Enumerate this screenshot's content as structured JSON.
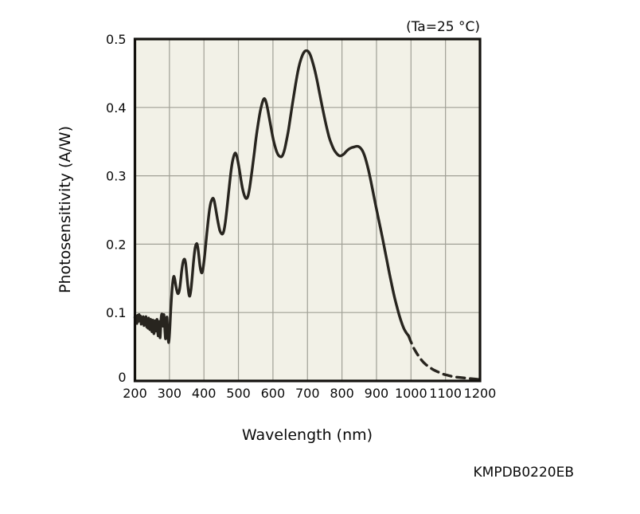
{
  "chart_data": {
    "type": "line",
    "title": "",
    "condition": "(Ta=25 °C)",
    "xlabel": "Wavelength (nm)",
    "ylabel": "Photosensitivity (A/W)",
    "footer_code": "KMPDB0220EB",
    "xlim": [
      200,
      1200
    ],
    "ylim": [
      0,
      0.5
    ],
    "x_ticks": [
      200,
      300,
      400,
      500,
      600,
      700,
      800,
      900,
      1000,
      1100,
      1200
    ],
    "y_ticks": [
      {
        "value": 0.0,
        "label": "0"
      },
      {
        "value": 0.1,
        "label": "0.1"
      },
      {
        "value": 0.2,
        "label": "0.2"
      },
      {
        "value": 0.3,
        "label": "0.3"
      },
      {
        "value": 0.4,
        "label": "0.4"
      },
      {
        "value": 0.5,
        "label": "0.5"
      }
    ],
    "grid": true,
    "legend_position": "none",
    "colors": {
      "plot_background": "#f2f1e7",
      "gridline": "#a0a096",
      "frame": "#13110e",
      "curve": "#28251f",
      "text": "#0a0a0a",
      "page_background": "#ffffff"
    },
    "series": [
      {
        "name": "photosensitivity-measured",
        "line_style": "solid",
        "points": [
          [
            200,
            0.093
          ],
          [
            202,
            0.086
          ],
          [
            204,
            0.095
          ],
          [
            206,
            0.084
          ],
          [
            208,
            0.096
          ],
          [
            210,
            0.087
          ],
          [
            212,
            0.097
          ],
          [
            214,
            0.088
          ],
          [
            216,
            0.095
          ],
          [
            218,
            0.083
          ],
          [
            220,
            0.093
          ],
          [
            222,
            0.085
          ],
          [
            224,
            0.094
          ],
          [
            226,
            0.081
          ],
          [
            228,
            0.092
          ],
          [
            230,
            0.084
          ],
          [
            232,
            0.094
          ],
          [
            234,
            0.079
          ],
          [
            236,
            0.091
          ],
          [
            238,
            0.077
          ],
          [
            240,
            0.092
          ],
          [
            243,
            0.075
          ],
          [
            246,
            0.09
          ],
          [
            249,
            0.072
          ],
          [
            252,
            0.089
          ],
          [
            255,
            0.069
          ],
          [
            258,
            0.088
          ],
          [
            261,
            0.073
          ],
          [
            264,
            0.09
          ],
          [
            267,
            0.066
          ],
          [
            270,
            0.087
          ],
          [
            273,
            0.063
          ],
          [
            276,
            0.092
          ],
          [
            279,
            0.097
          ],
          [
            281,
            0.08
          ],
          [
            284,
            0.097
          ],
          [
            287,
            0.072
          ],
          [
            289,
            0.062
          ],
          [
            291,
            0.085
          ],
          [
            293,
            0.093
          ],
          [
            295,
            0.072
          ],
          [
            298,
            0.056
          ],
          [
            301,
            0.075
          ],
          [
            304,
            0.105
          ],
          [
            308,
            0.136
          ],
          [
            312,
            0.152
          ],
          [
            315,
            0.15
          ],
          [
            318,
            0.141
          ],
          [
            321,
            0.133
          ],
          [
            324,
            0.128
          ],
          [
            327,
            0.129
          ],
          [
            330,
            0.136
          ],
          [
            333,
            0.149
          ],
          [
            336,
            0.163
          ],
          [
            340,
            0.175
          ],
          [
            344,
            0.178
          ],
          [
            347,
            0.172
          ],
          [
            350,
            0.157
          ],
          [
            353,
            0.141
          ],
          [
            356,
            0.128
          ],
          [
            358,
            0.124
          ],
          [
            360,
            0.126
          ],
          [
            363,
            0.136
          ],
          [
            366,
            0.152
          ],
          [
            369,
            0.17
          ],
          [
            372,
            0.185
          ],
          [
            375,
            0.196
          ],
          [
            379,
            0.201
          ],
          [
            382,
            0.196
          ],
          [
            385,
            0.184
          ],
          [
            388,
            0.17
          ],
          [
            391,
            0.161
          ],
          [
            394,
            0.158
          ],
          [
            397,
            0.163
          ],
          [
            400,
            0.174
          ],
          [
            404,
            0.193
          ],
          [
            408,
            0.214
          ],
          [
            412,
            0.233
          ],
          [
            416,
            0.25
          ],
          [
            420,
            0.261
          ],
          [
            424,
            0.266
          ],
          [
            427,
            0.267
          ],
          [
            430,
            0.263
          ],
          [
            434,
            0.252
          ],
          [
            438,
            0.24
          ],
          [
            442,
            0.229
          ],
          [
            446,
            0.22
          ],
          [
            450,
            0.216
          ],
          [
            454,
            0.215
          ],
          [
            458,
            0.22
          ],
          [
            462,
            0.232
          ],
          [
            466,
            0.249
          ],
          [
            470,
            0.268
          ],
          [
            474,
            0.287
          ],
          [
            478,
            0.305
          ],
          [
            482,
            0.319
          ],
          [
            486,
            0.328
          ],
          [
            490,
            0.333
          ],
          [
            493,
            0.332
          ],
          [
            496,
            0.327
          ],
          [
            500,
            0.317
          ],
          [
            504,
            0.305
          ],
          [
            508,
            0.292
          ],
          [
            512,
            0.281
          ],
          [
            516,
            0.273
          ],
          [
            520,
            0.268
          ],
          [
            524,
            0.267
          ],
          [
            528,
            0.271
          ],
          [
            532,
            0.281
          ],
          [
            536,
            0.295
          ],
          [
            541,
            0.314
          ],
          [
            546,
            0.334
          ],
          [
            551,
            0.355
          ],
          [
            557,
            0.376
          ],
          [
            563,
            0.394
          ],
          [
            568,
            0.405
          ],
          [
            572,
            0.411
          ],
          [
            575,
            0.413
          ],
          [
            578,
            0.411
          ],
          [
            582,
            0.404
          ],
          [
            586,
            0.394
          ],
          [
            591,
            0.38
          ],
          [
            596,
            0.366
          ],
          [
            601,
            0.353
          ],
          [
            606,
            0.343
          ],
          [
            611,
            0.335
          ],
          [
            616,
            0.33
          ],
          [
            621,
            0.328
          ],
          [
            625,
            0.328
          ],
          [
            629,
            0.331
          ],
          [
            634,
            0.339
          ],
          [
            639,
            0.351
          ],
          [
            645,
            0.367
          ],
          [
            651,
            0.387
          ],
          [
            658,
            0.41
          ],
          [
            665,
            0.432
          ],
          [
            672,
            0.452
          ],
          [
            679,
            0.467
          ],
          [
            686,
            0.477
          ],
          [
            692,
            0.482
          ],
          [
            697,
            0.483
          ],
          [
            702,
            0.482
          ],
          [
            708,
            0.477
          ],
          [
            714,
            0.468
          ],
          [
            721,
            0.455
          ],
          [
            728,
            0.439
          ],
          [
            735,
            0.421
          ],
          [
            742,
            0.403
          ],
          [
            749,
            0.386
          ],
          [
            756,
            0.37
          ],
          [
            763,
            0.356
          ],
          [
            770,
            0.346
          ],
          [
            777,
            0.338
          ],
          [
            784,
            0.333
          ],
          [
            790,
            0.33
          ],
          [
            795,
            0.329
          ],
          [
            800,
            0.33
          ],
          [
            806,
            0.332
          ],
          [
            813,
            0.336
          ],
          [
            820,
            0.339
          ],
          [
            827,
            0.341
          ],
          [
            834,
            0.342
          ],
          [
            841,
            0.343
          ],
          [
            847,
            0.343
          ],
          [
            853,
            0.341
          ],
          [
            859,
            0.337
          ],
          [
            865,
            0.33
          ],
          [
            871,
            0.32
          ],
          [
            877,
            0.308
          ],
          [
            883,
            0.294
          ],
          [
            889,
            0.279
          ],
          [
            896,
            0.261
          ],
          [
            903,
            0.244
          ],
          [
            910,
            0.227
          ],
          [
            917,
            0.21
          ],
          [
            924,
            0.192
          ],
          [
            931,
            0.174
          ],
          [
            938,
            0.156
          ],
          [
            945,
            0.139
          ],
          [
            952,
            0.123
          ],
          [
            959,
            0.109
          ],
          [
            966,
            0.096
          ],
          [
            973,
            0.085
          ],
          [
            980,
            0.076
          ],
          [
            987,
            0.07
          ],
          [
            993,
            0.066
          ]
        ]
      },
      {
        "name": "photosensitivity-extrapolated",
        "line_style": "dashed",
        "points": [
          [
            993,
            0.066
          ],
          [
            1000,
            0.057
          ],
          [
            1008,
            0.048
          ],
          [
            1016,
            0.041
          ],
          [
            1024,
            0.035
          ],
          [
            1033,
            0.029
          ],
          [
            1043,
            0.024
          ],
          [
            1054,
            0.02
          ],
          [
            1066,
            0.016
          ],
          [
            1079,
            0.013
          ],
          [
            1093,
            0.01
          ],
          [
            1108,
            0.008
          ],
          [
            1124,
            0.006
          ],
          [
            1142,
            0.005
          ],
          [
            1161,
            0.004
          ],
          [
            1181,
            0.003
          ],
          [
            1200,
            0.002
          ]
        ]
      }
    ]
  }
}
